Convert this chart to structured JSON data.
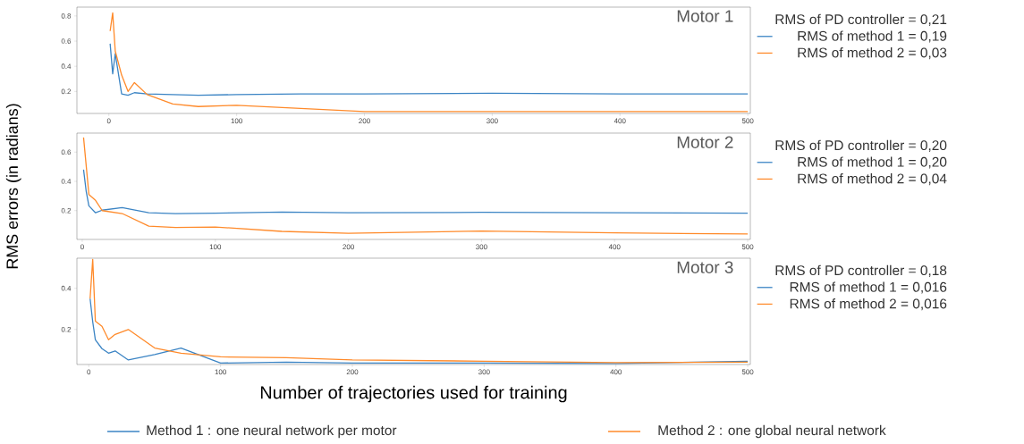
{
  "chart_data": [
    {
      "type": "line",
      "title": "Motor 1",
      "xlim": [
        -25,
        502
      ],
      "ylim": [
        0.025,
        0.87
      ],
      "xticks": [
        0,
        100,
        200,
        300,
        400,
        500
      ],
      "yticks": [
        0.2,
        0.4,
        0.6,
        0.8
      ],
      "legend": "right",
      "legend_title": "RMS of PD controller = 0,21",
      "series": [
        {
          "name": "RMS of method 1 = 0,19",
          "color": "#3b84c4",
          "x": [
            1,
            3,
            5,
            10,
            15,
            20,
            30,
            70,
            100,
            150,
            200,
            300,
            400,
            500
          ],
          "values": [
            0.58,
            0.34,
            0.5,
            0.18,
            0.17,
            0.19,
            0.18,
            0.17,
            0.175,
            0.18,
            0.18,
            0.185,
            0.18,
            0.18
          ]
        },
        {
          "name": "RMS of method 2 = 0,03",
          "color": "#ff8a2a",
          "x": [
            1,
            3,
            5,
            10,
            15,
            20,
            30,
            50,
            70,
            100,
            150,
            200,
            300,
            500
          ],
          "values": [
            0.68,
            0.825,
            0.52,
            0.33,
            0.2,
            0.27,
            0.175,
            0.1,
            0.08,
            0.09,
            0.065,
            0.04,
            0.04,
            0.04
          ]
        }
      ]
    },
    {
      "type": "line",
      "title": "Motor 2",
      "ylabel": "RMS errors (in radians)",
      "xlim": [
        -4,
        502
      ],
      "ylim": [
        0.003,
        0.73
      ],
      "xticks": [
        0,
        100,
        200,
        300,
        400,
        500
      ],
      "yticks": [
        0.2,
        0.4,
        0.6
      ],
      "legend": "right",
      "legend_title": "RMS of PD controller = 0,20",
      "series": [
        {
          "name": "RMS of method 1 = 0,20",
          "color": "#3b84c4",
          "x": [
            1,
            3,
            5,
            10,
            15,
            30,
            50,
            70,
            100,
            150,
            200,
            300,
            400,
            500
          ],
          "values": [
            0.48,
            0.33,
            0.233,
            0.185,
            0.203,
            0.22,
            0.185,
            0.18,
            0.182,
            0.19,
            0.185,
            0.188,
            0.185,
            0.182
          ]
        },
        {
          "name": "RMS of method 2 = 0,04",
          "color": "#ff8a2a",
          "x": [
            1,
            5,
            10,
            15,
            30,
            50,
            70,
            100,
            150,
            200,
            300,
            400,
            500
          ],
          "values": [
            0.7,
            0.31,
            0.27,
            0.2,
            0.18,
            0.094,
            0.085,
            0.088,
            0.058,
            0.045,
            0.06,
            0.048,
            0.04
          ]
        }
      ]
    },
    {
      "type": "line",
      "title": "Motor 3",
      "xlabel": "Number of trajectories used for training",
      "xlim": [
        -9,
        502
      ],
      "ylim": [
        0.03,
        0.546
      ],
      "xticks": [
        0,
        100,
        200,
        300,
        400,
        500
      ],
      "yticks": [
        0.2,
        0.4
      ],
      "legend": "right",
      "legend_title": "RMS of PD controller = 0,18",
      "annotations": [
        "Method 1 : one neural network per motor",
        "Method 2 : one global neural network"
      ],
      "series": [
        {
          "name": "RMS of method 1 = 0,016",
          "color": "#3b84c4",
          "x": [
            1,
            3,
            5,
            10,
            15,
            20,
            30,
            50,
            70,
            100,
            150,
            200,
            300,
            400,
            500
          ],
          "values": [
            0.35,
            0.237,
            0.15,
            0.107,
            0.085,
            0.096,
            0.052,
            0.078,
            0.11,
            0.037,
            0.041,
            0.037,
            0.037,
            0.035,
            0.046
          ]
        },
        {
          "name": "RMS of method 2 = 0,016",
          "color": "#ff8a2a",
          "x": [
            1,
            3,
            5,
            10,
            15,
            20,
            30,
            50,
            70,
            100,
            150,
            200,
            300,
            400,
            500
          ],
          "values": [
            0.35,
            0.54,
            0.24,
            0.215,
            0.15,
            0.176,
            0.2,
            0.11,
            0.085,
            0.067,
            0.063,
            0.052,
            0.046,
            0.039,
            0.041
          ]
        }
      ]
    }
  ]
}
